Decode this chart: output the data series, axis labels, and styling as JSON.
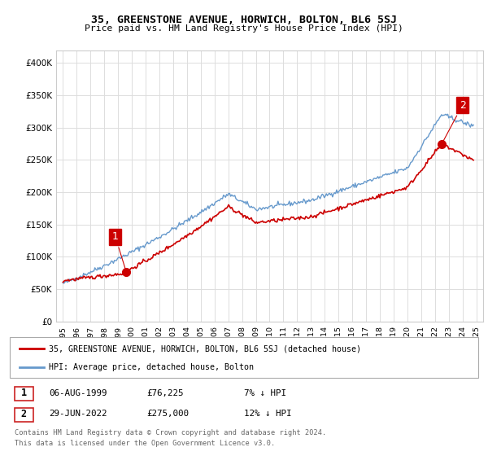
{
  "title": "35, GREENSTONE AVENUE, HORWICH, BOLTON, BL6 5SJ",
  "subtitle": "Price paid vs. HM Land Registry's House Price Index (HPI)",
  "legend_line1": "35, GREENSTONE AVENUE, HORWICH, BOLTON, BL6 5SJ (detached house)",
  "legend_line2": "HPI: Average price, detached house, Bolton",
  "footer1": "Contains HM Land Registry data © Crown copyright and database right 2024.",
  "footer2": "This data is licensed under the Open Government Licence v3.0.",
  "table": [
    {
      "num": "1",
      "date": "06-AUG-1999",
      "price": "£76,225",
      "change": "7% ↓ HPI"
    },
    {
      "num": "2",
      "date": "29-JUN-2022",
      "price": "£275,000",
      "change": "12% ↓ HPI"
    }
  ],
  "sale1_year": 1999.6,
  "sale1_price": 76225,
  "sale2_year": 2022.5,
  "sale2_price": 275000,
  "red_color": "#cc0000",
  "blue_color": "#6699cc",
  "background_color": "#ffffff",
  "grid_color": "#dddddd",
  "ylim": [
    0,
    420000
  ],
  "xlim_start": 1994.5,
  "xlim_end": 2025.5
}
